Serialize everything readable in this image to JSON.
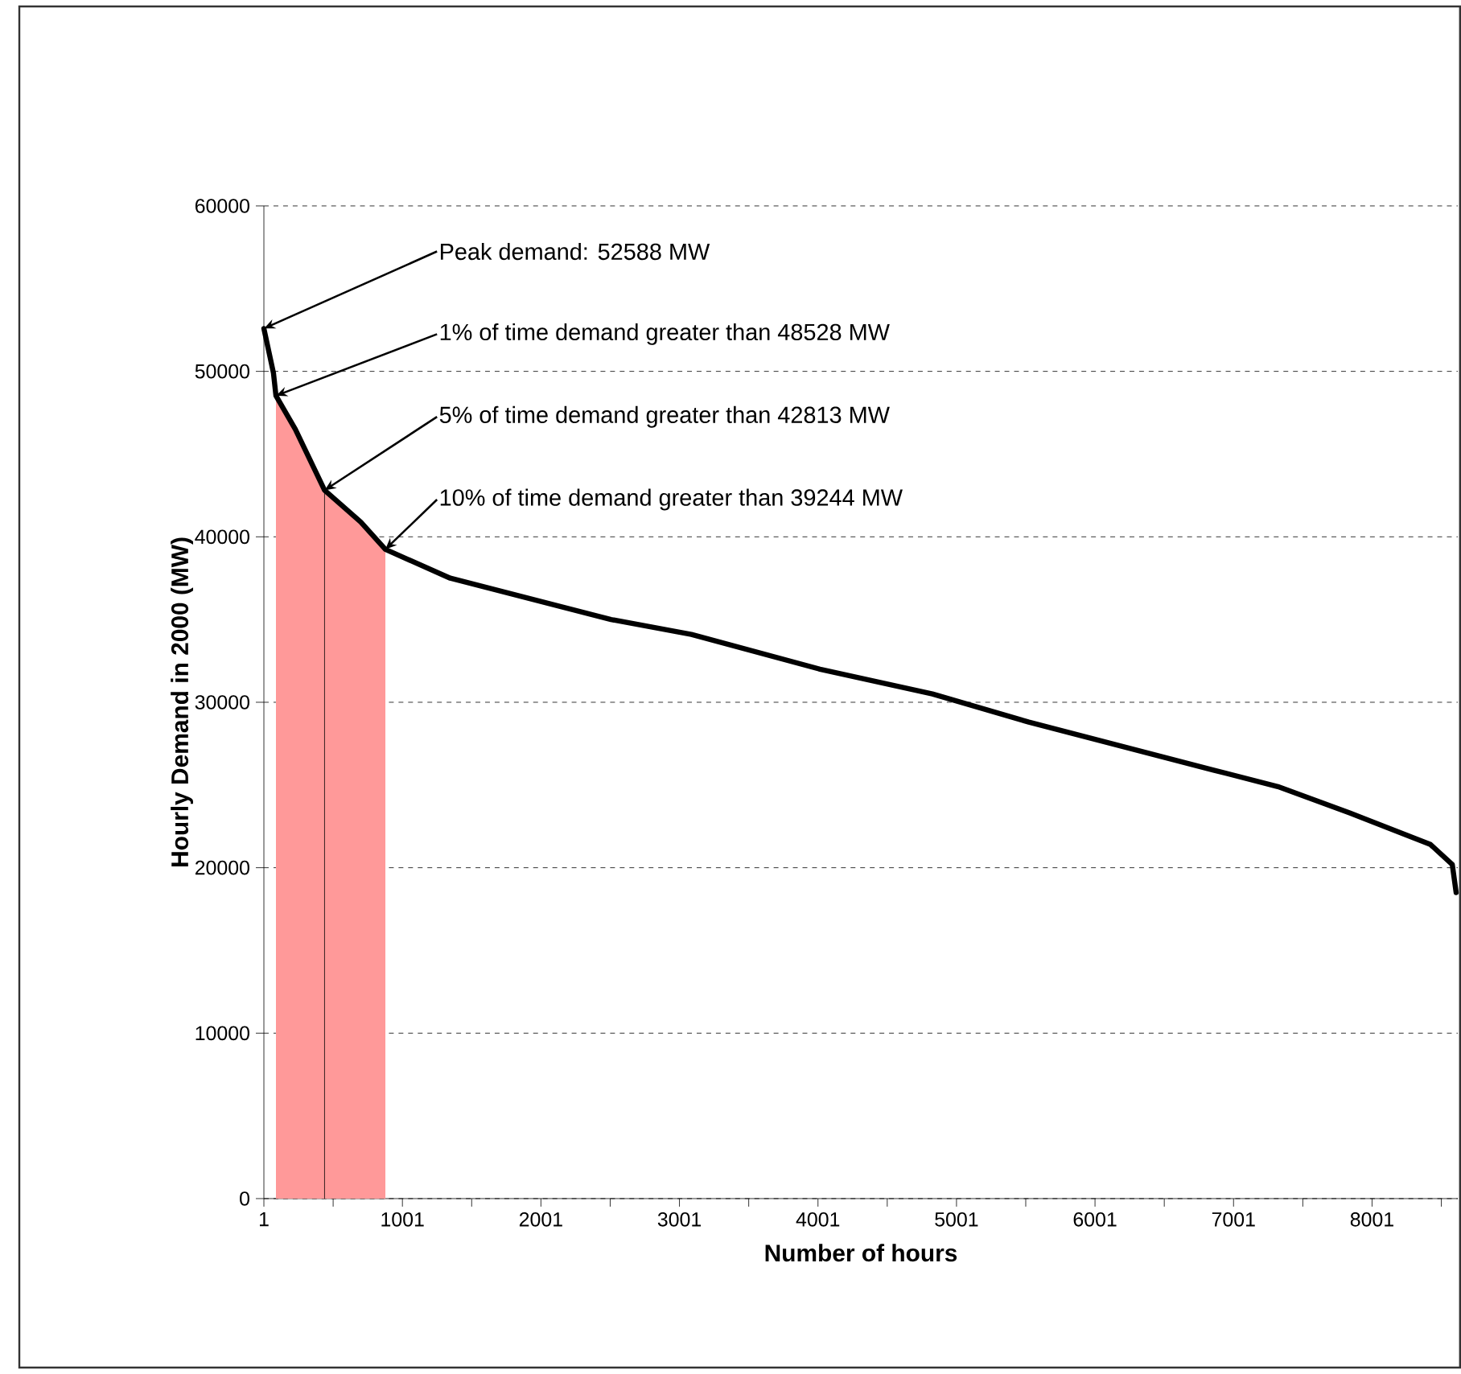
{
  "chart_data": {
    "type": "line",
    "xlabel": "Number of hours",
    "ylabel": "Hourly Demand in 2000 (MW)",
    "xlim": [
      1,
      8620
    ],
    "ylim": [
      0,
      60000
    ],
    "xticks": [
      1,
      {
        "value": 501,
        "label": null
      },
      1001,
      {
        "value": 1501,
        "label": null
      },
      2001,
      {
        "value": 2501,
        "label": null
      },
      3001,
      {
        "value": 3501,
        "label": null
      },
      4001,
      {
        "value": 4501,
        "label": null
      },
      5001,
      {
        "value": 5501,
        "label": null
      },
      6001,
      {
        "value": 6501,
        "label": null
      },
      7001,
      {
        "value": 7501,
        "label": null
      },
      8001,
      {
        "value": 8501,
        "label": null
      }
    ],
    "yticks": [
      0,
      10000,
      20000,
      30000,
      40000,
      50000,
      60000
    ],
    "grid": "y",
    "marker": "none",
    "line_style": "solid",
    "series": [
      {
        "color": "#000000",
        "x": [
          1,
          70,
          88,
          228,
          439,
          700,
          878,
          1346,
          2507,
          3087,
          4015,
          4827,
          5523,
          6857,
          7321,
          7843,
          8423,
          8580,
          8608
        ],
        "values": [
          52588,
          49900,
          48528,
          46500,
          42813,
          40900,
          39244,
          37500,
          35000,
          34100,
          32000,
          30500,
          28800,
          25900,
          24900,
          23300,
          21400,
          20200,
          18500
        ]
      }
    ],
    "bands": [
      {
        "axis": "x",
        "from": 88,
        "to": 878,
        "color": "#ff9999"
      }
    ],
    "ref_lines": [
      {
        "axis": "x",
        "value": 439,
        "color": "#000000"
      }
    ],
    "annotations": [
      {
        "text": "Peak demand: 52588 MW",
        "x": 1,
        "y": 52588
      },
      {
        "text": "1% of time demand greater than 48528 MW",
        "x": 88,
        "y": 48528
      },
      {
        "text": "5% of time demand greater than 42813 MW",
        "x": 439,
        "y": 42813
      },
      {
        "text": "10% of time demand greater than 39244 MW",
        "x": 878,
        "y": 39244
      }
    ]
  }
}
